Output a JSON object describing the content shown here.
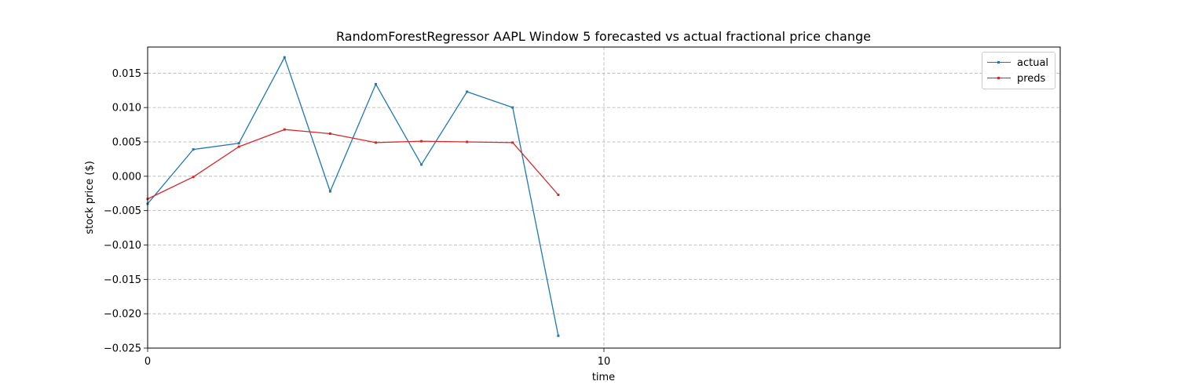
{
  "chart_data": {
    "type": "line",
    "title": "RandomForestRegressor AAPL Window 5 forecasted vs actual fractional price change",
    "xlabel": "time",
    "ylabel": "stock price ($)",
    "xlim": [
      0,
      20
    ],
    "ylim": [
      -0.025,
      0.0188
    ],
    "x_ticks": [
      0,
      10
    ],
    "y_ticks": [
      -0.025,
      -0.02,
      -0.015,
      -0.01,
      -0.005,
      0.0,
      0.005,
      0.01,
      0.015
    ],
    "y_tick_labels": [
      "−0.025",
      "−0.020",
      "−0.015",
      "−0.010",
      "−0.005",
      "0.000",
      "0.005",
      "0.010",
      "0.015"
    ],
    "grid": true,
    "legend_position": "top-right",
    "x": [
      0,
      1,
      2,
      3,
      4,
      5,
      6,
      7,
      8,
      9
    ],
    "series": [
      {
        "name": "actual",
        "color": "#1f77b4",
        "values": [
          -0.004,
          0.0039,
          0.0048,
          0.0173,
          -0.0022,
          0.0134,
          0.0017,
          0.0123,
          0.01,
          -0.0232
        ]
      },
      {
        "name": "preds",
        "color": "#d62728",
        "values": [
          -0.0033,
          -0.0001,
          0.0043,
          0.0068,
          0.0062,
          0.0049,
          0.0051,
          0.005,
          0.0049,
          -0.0027
        ]
      }
    ]
  }
}
